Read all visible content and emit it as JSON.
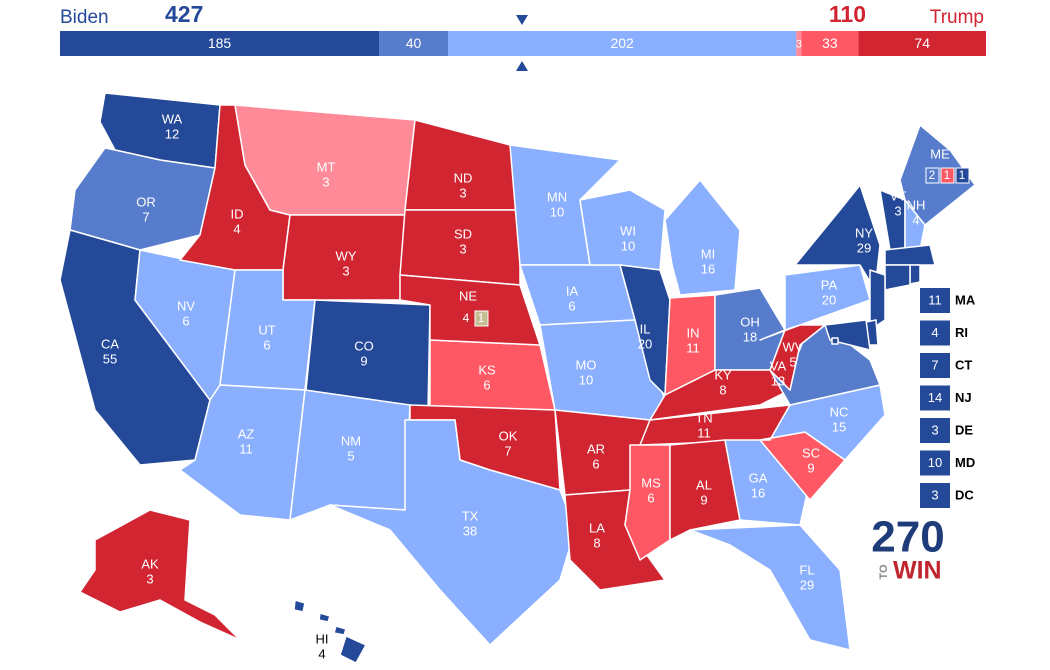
{
  "header": {
    "left_name": "Biden",
    "left_total": 427,
    "right_name": "Trump",
    "right_total": 110
  },
  "bar": {
    "segments": [
      {
        "value": 185,
        "color": "#244999"
      },
      {
        "value": 40,
        "color": "#577ccc"
      },
      {
        "value": 202,
        "color": "#8aafff"
      },
      {
        "value": 3,
        "color": "#ff8b98"
      },
      {
        "value": 33,
        "color": "#ff5865"
      },
      {
        "value": 74,
        "color": "#d22532"
      }
    ]
  },
  "states": [
    {
      "abbr": "WA",
      "votes": 12,
      "color": "#244999"
    },
    {
      "abbr": "OR",
      "votes": 7,
      "color": "#577ccc"
    },
    {
      "abbr": "CA",
      "votes": 55,
      "color": "#244999"
    },
    {
      "abbr": "NV",
      "votes": 6,
      "color": "#8aafff"
    },
    {
      "abbr": "ID",
      "votes": 4,
      "color": "#d22532"
    },
    {
      "abbr": "MT",
      "votes": 3,
      "color": "#ff8b98"
    },
    {
      "abbr": "WY",
      "votes": 3,
      "color": "#d22532"
    },
    {
      "abbr": "UT",
      "votes": 6,
      "color": "#8aafff"
    },
    {
      "abbr": "CO",
      "votes": 9,
      "color": "#244999"
    },
    {
      "abbr": "AZ",
      "votes": 11,
      "color": "#8aafff"
    },
    {
      "abbr": "NM",
      "votes": 5,
      "color": "#8aafff"
    },
    {
      "abbr": "ND",
      "votes": 3,
      "color": "#d22532"
    },
    {
      "abbr": "SD",
      "votes": 3,
      "color": "#d22532"
    },
    {
      "abbr": "KS",
      "votes": 6,
      "color": "#ff5865"
    },
    {
      "abbr": "OK",
      "votes": 7,
      "color": "#d22532"
    },
    {
      "abbr": "TX",
      "votes": 38,
      "color": "#8aafff"
    },
    {
      "abbr": "MN",
      "votes": 10,
      "color": "#8aafff"
    },
    {
      "abbr": "IA",
      "votes": 6,
      "color": "#8aafff"
    },
    {
      "abbr": "MO",
      "votes": 10,
      "color": "#8aafff"
    },
    {
      "abbr": "AR",
      "votes": 6,
      "color": "#d22532"
    },
    {
      "abbr": "LA",
      "votes": 8,
      "color": "#d22532"
    },
    {
      "abbr": "WI",
      "votes": 10,
      "color": "#8aafff"
    },
    {
      "abbr": "IL",
      "votes": 20,
      "color": "#244999"
    },
    {
      "abbr": "MI",
      "votes": 16,
      "color": "#8aafff"
    },
    {
      "abbr": "IN",
      "votes": 11,
      "color": "#ff5865"
    },
    {
      "abbr": "OH",
      "votes": 18,
      "color": "#577ccc"
    },
    {
      "abbr": "KY",
      "votes": 8,
      "color": "#d22532"
    },
    {
      "abbr": "TN",
      "votes": 11,
      "color": "#d22532"
    },
    {
      "abbr": "MS",
      "votes": 6,
      "color": "#ff5865"
    },
    {
      "abbr": "AL",
      "votes": 9,
      "color": "#d22532"
    },
    {
      "abbr": "GA",
      "votes": 16,
      "color": "#8aafff"
    },
    {
      "abbr": "FL",
      "votes": 29,
      "color": "#8aafff"
    },
    {
      "abbr": "SC",
      "votes": 9,
      "color": "#ff5865"
    },
    {
      "abbr": "NC",
      "votes": 15,
      "color": "#8aafff"
    },
    {
      "abbr": "VA",
      "votes": 13,
      "color": "#577ccc"
    },
    {
      "abbr": "WV",
      "votes": 5,
      "color": "#d22532"
    },
    {
      "abbr": "PA",
      "votes": 20,
      "color": "#8aafff"
    },
    {
      "abbr": "NY",
      "votes": 29,
      "color": "#244999"
    },
    {
      "abbr": "VT",
      "votes": 3,
      "color": "#244999"
    },
    {
      "abbr": "NH",
      "votes": 4,
      "color": "#8aafff"
    },
    {
      "abbr": "AK",
      "votes": 3,
      "color": "#d22532"
    },
    {
      "abbr": "HI",
      "votes": 4,
      "color": "#244999"
    }
  ],
  "split_states": [
    {
      "abbr": "ME",
      "districts": [
        {
          "votes": 2,
          "color": "#577ccc"
        },
        {
          "votes": 1,
          "color": "#ff5865"
        },
        {
          "votes": 1,
          "color": "#244999"
        }
      ]
    },
    {
      "abbr": "NE",
      "districts": [
        {
          "votes": 4,
          "color": "#d22532"
        },
        {
          "votes": 1,
          "color": "#c5bd92"
        }
      ]
    }
  ],
  "callouts": [
    {
      "abbr": "MA",
      "votes": 11,
      "color": "#244999"
    },
    {
      "abbr": "RI",
      "votes": 4,
      "color": "#244999"
    },
    {
      "abbr": "CT",
      "votes": 7,
      "color": "#244999"
    },
    {
      "abbr": "NJ",
      "votes": 14,
      "color": "#244999"
    },
    {
      "abbr": "DE",
      "votes": 3,
      "color": "#244999"
    },
    {
      "abbr": "MD",
      "votes": 10,
      "color": "#244999"
    },
    {
      "abbr": "DC",
      "votes": 3,
      "color": "#244999"
    }
  ],
  "logo": {
    "number": "270",
    "small": "TO",
    "word": "WIN"
  }
}
